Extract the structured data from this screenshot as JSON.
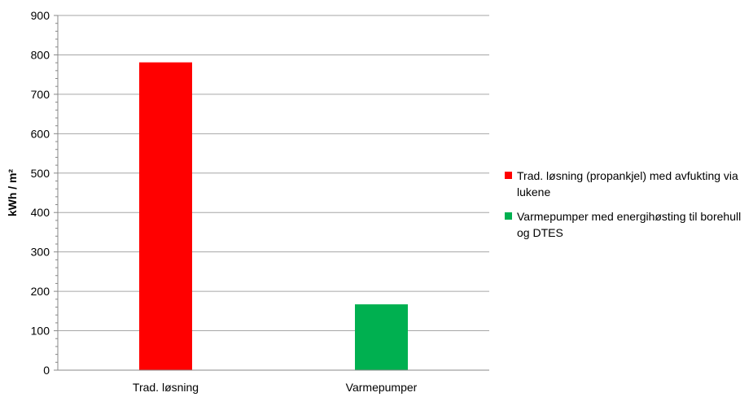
{
  "chart_data": {
    "type": "bar",
    "categories": [
      "Trad. løsning",
      "Varmepumper"
    ],
    "values": [
      781,
      167
    ],
    "colors": [
      "#ff0000",
      "#00b050"
    ],
    "ylabel": "kWh / m²",
    "xlabel": "",
    "ylim": [
      0,
      900
    ],
    "y_ticks": [
      "0",
      "100",
      "200",
      "300",
      "400",
      "500",
      "600",
      "700",
      "800",
      "900"
    ],
    "grid": true,
    "legend_position": "right",
    "legend": [
      {
        "label": "Trad. løsning (propankjel) med avfukting via lukene",
        "color": "#ff0000"
      },
      {
        "label": "Varmepumper med energihøsting til borehull og DTES",
        "color": "#00b050"
      }
    ]
  }
}
